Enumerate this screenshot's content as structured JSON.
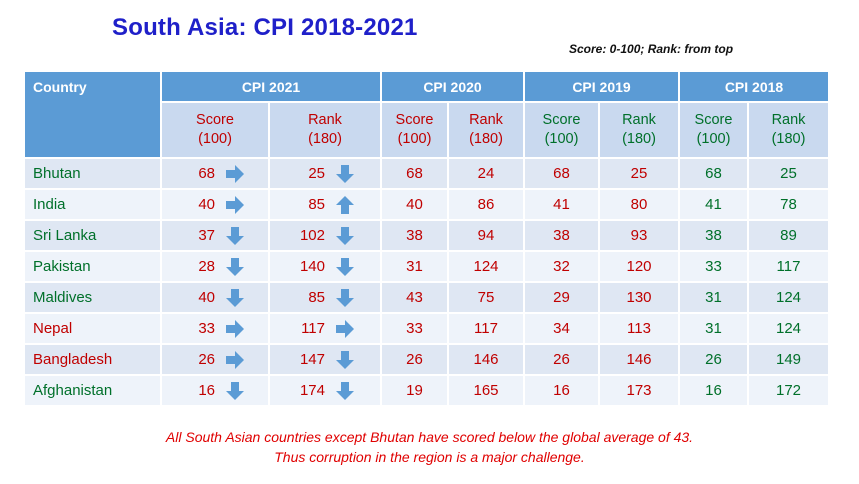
{
  "title": "South Asia: CPI 2018-2021",
  "note": "Score: 0-100; Rank: from top",
  "header": {
    "country": "Country",
    "groups": [
      "CPI 2021",
      "CPI 2020",
      "CPI 2019",
      "CPI 2018"
    ],
    "score_label": "Score",
    "score_sub": "(100)",
    "rank_label": "Rank",
    "rank_sub": "(180)"
  },
  "rows": [
    {
      "country": "Bhutan",
      "country_color": "green",
      "s21": "68",
      "s21_arrow": "right",
      "r21": "25",
      "r21_arrow": "down",
      "s20": "68",
      "r20": "24",
      "s19": "68",
      "r19": "25",
      "s18": "68",
      "r18": "25"
    },
    {
      "country": "India",
      "country_color": "green",
      "s21": "40",
      "s21_arrow": "right",
      "r21": "85",
      "r21_arrow": "up",
      "s20": "40",
      "r20": "86",
      "s19": "41",
      "r19": "80",
      "s18": "41",
      "r18": "78"
    },
    {
      "country": "Sri Lanka",
      "country_color": "green",
      "s21": "37",
      "s21_arrow": "down",
      "r21": "102",
      "r21_arrow": "down",
      "s20": "38",
      "r20": "94",
      "s19": "38",
      "r19": "93",
      "s18": "38",
      "r18": "89"
    },
    {
      "country": "Pakistan",
      "country_color": "green",
      "s21": "28",
      "s21_arrow": "down",
      "r21": "140",
      "r21_arrow": "down",
      "s20": "31",
      "r20": "124",
      "s19": "32",
      "r19": "120",
      "s18": "33",
      "r18": "117"
    },
    {
      "country": "Maldives",
      "country_color": "green",
      "s21": "40",
      "s21_arrow": "down",
      "r21": "85",
      "r21_arrow": "down",
      "s20": "43",
      "r20": "75",
      "s19": "29",
      "r19": "130",
      "s18": "31",
      "r18": "124"
    },
    {
      "country": "Nepal",
      "country_color": "red",
      "s21": "33",
      "s21_arrow": "right",
      "r21": "117",
      "r21_arrow": "right",
      "s20": "33",
      "r20": "117",
      "s19": "34",
      "r19": "113",
      "s18": "31",
      "r18": "124"
    },
    {
      "country": "Bangladesh",
      "country_color": "red",
      "s21": "26",
      "s21_arrow": "right",
      "r21": "147",
      "r21_arrow": "down",
      "s20": "26",
      "r20": "146",
      "s19": "26",
      "r19": "146",
      "s18": "26",
      "r18": "149"
    },
    {
      "country": "Afghanistan",
      "country_color": "green",
      "s21": "16",
      "s21_arrow": "down",
      "r21": "174",
      "r21_arrow": "down",
      "s20": "19",
      "r20": "165",
      "s19": "16",
      "r19": "173",
      "s18": "16",
      "r18": "172"
    }
  ],
  "footer": {
    "line1": "All South Asian countries except Bhutan have scored below the global average of 43.",
    "line2": "Thus corruption in the region is a major challenge."
  },
  "colors": {
    "title": "#1f20c9",
    "header": "#5b9bd5",
    "subheader": "#c9d9ef",
    "red": "#c00000",
    "green": "#00702a",
    "arrow": "#5b9bd5"
  }
}
